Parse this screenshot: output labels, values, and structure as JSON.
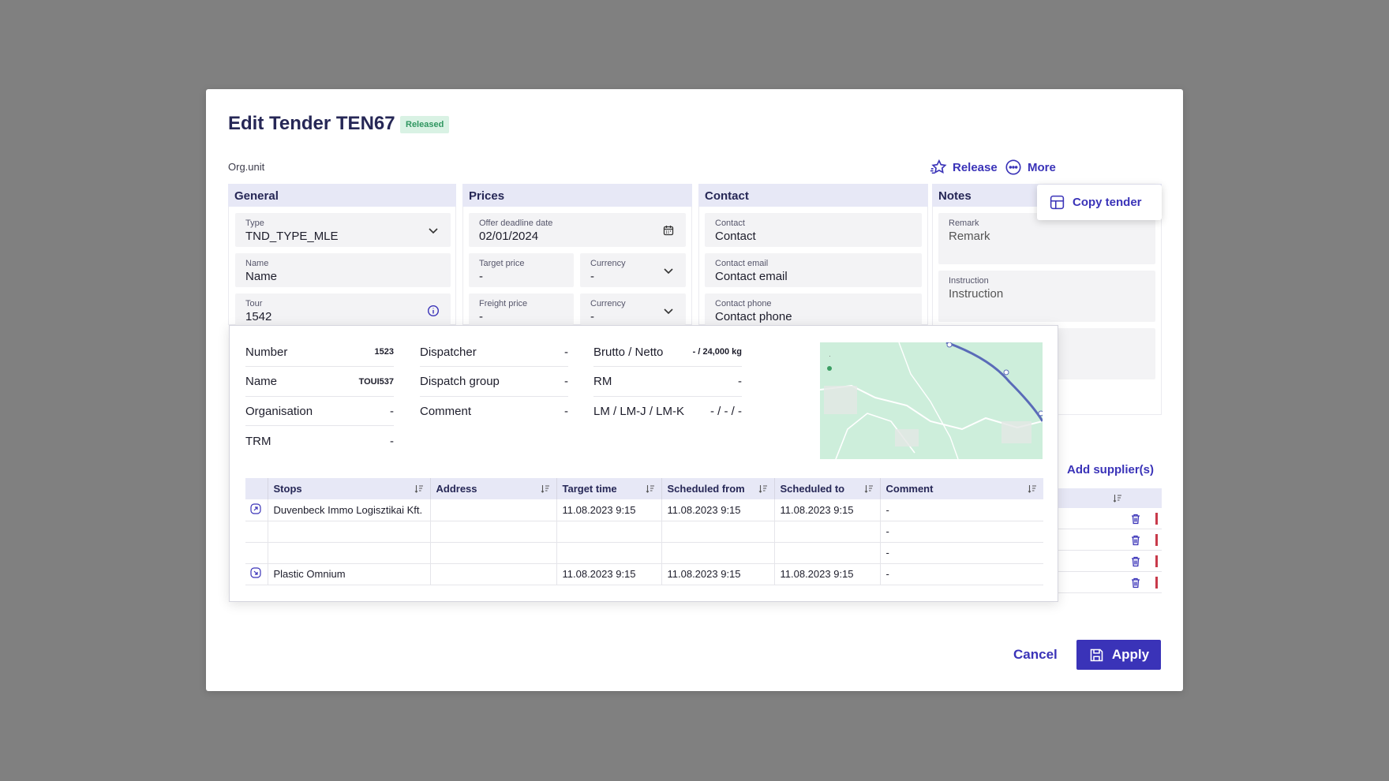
{
  "header": {
    "title": "Edit Tender TEN67",
    "status": "Released",
    "org_unit": "Org.unit"
  },
  "actions": {
    "release": "Release",
    "more": "More",
    "copy_tender": "Copy tender"
  },
  "general": {
    "title": "General",
    "type": {
      "label": "Type",
      "value": "TND_TYPE_MLE"
    },
    "name": {
      "label": "Name",
      "placeholder": "Name"
    },
    "tour": {
      "label": "Tour",
      "value": "1542"
    }
  },
  "prices": {
    "title": "Prices",
    "offer_deadline": {
      "label": "Offer deadline date",
      "value": "02/01/2024"
    },
    "target_price": {
      "label": "Target price",
      "value": "-"
    },
    "currency1": {
      "label": "Currency",
      "value": "-"
    },
    "freight_price": {
      "label": "Freight price",
      "value": "-"
    },
    "currency2": {
      "label": "Currency",
      "value": "-"
    }
  },
  "contact": {
    "title": "Contact",
    "contact": {
      "label": "Contact",
      "placeholder": "Contact"
    },
    "email": {
      "label": "Contact email",
      "placeholder": "Contact email"
    },
    "phone": {
      "label": "Contact phone",
      "placeholder": "Contact phone"
    }
  },
  "notes": {
    "title": "Notes",
    "remark": {
      "label": "Remark",
      "placeholder": "Remark"
    },
    "instruction": {
      "label": "Instruction",
      "placeholder": "Instruction"
    }
  },
  "tour_info": {
    "col1": [
      {
        "label": "Number",
        "value": "1523"
      },
      {
        "label": "Name",
        "value": "TOUI537"
      },
      {
        "label": "Organisation",
        "value": "-"
      },
      {
        "label": "TRM",
        "value": "-"
      }
    ],
    "col2": [
      {
        "label": "Dispatcher",
        "value": "-"
      },
      {
        "label": "Dispatch group",
        "value": "-"
      },
      {
        "label": "Comment",
        "value": "-"
      }
    ],
    "col3": [
      {
        "label": "Brutto / Netto",
        "value": "- / 24,000 kg"
      },
      {
        "label": "RM",
        "value": "-"
      },
      {
        "label": "LM / LM-J / LM-K",
        "value": "- / - / -"
      }
    ]
  },
  "stops_table": {
    "headers": [
      "Stops",
      "Address",
      "Target time",
      "Scheduled from",
      "Scheduled to",
      "Comment"
    ],
    "rows": [
      {
        "stop": "Duvenbeck Immo Logisztikai Kft.",
        "address": "",
        "target": "11.08.2023 9:15",
        "from": "11.08.2023 9:15",
        "to": "11.08.2023 9:15",
        "comment": "-"
      },
      {
        "stop": "",
        "address": "",
        "target": "",
        "from": "",
        "to": "",
        "comment": "-"
      },
      {
        "stop": "",
        "address": "",
        "target": "",
        "from": "",
        "to": "",
        "comment": "-"
      },
      {
        "stop": "Plastic Omnium",
        "address": "",
        "target": "11.08.2023 9:15",
        "from": "11.08.2023 9:15",
        "to": "11.08.2023 9:15",
        "comment": "-"
      }
    ]
  },
  "suppliers": {
    "add_label": "Add supplier(s)"
  },
  "footer": {
    "cancel": "Cancel",
    "apply": "Apply"
  },
  "colors": {
    "primary": "#3a33b8",
    "header_bg": "#e7e8f6",
    "badge_bg": "#d9f2e4",
    "badge_fg": "#2f9660"
  }
}
